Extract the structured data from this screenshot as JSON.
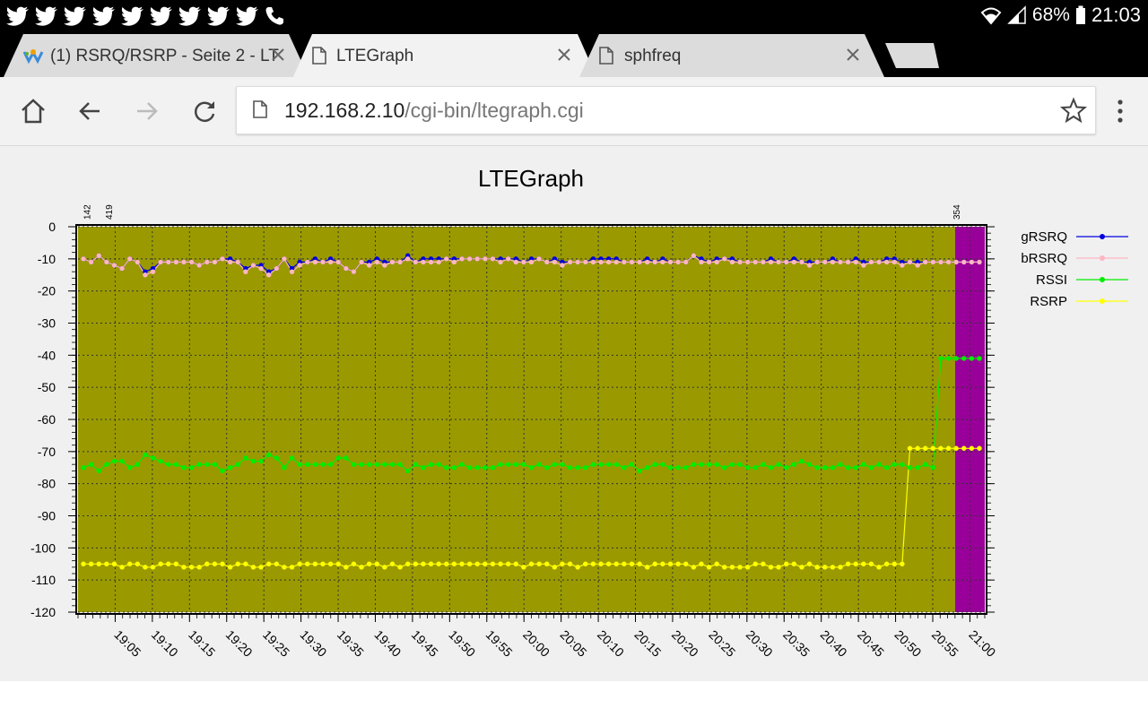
{
  "status_bar": {
    "battery": "68%",
    "time": "21:03",
    "notification_icons": [
      "twitter-icon",
      "twitter-icon",
      "twitter-icon",
      "twitter-icon",
      "twitter-icon",
      "twitter-icon",
      "twitter-icon",
      "twitter-icon",
      "twitter-icon",
      "phone-icon"
    ]
  },
  "tabs": [
    {
      "title": "(1) RSRQ/RSRP - Seite 2 - LT",
      "favicon": "forum-logo-icon",
      "active": false
    },
    {
      "title": "LTEGraph",
      "favicon": "page-icon",
      "active": true
    },
    {
      "title": "sphfreq",
      "favicon": "page-icon",
      "active": false
    }
  ],
  "address_bar": {
    "host": "192.168.2.10",
    "path": "/cgi-bin/ltegraph.cgi"
  },
  "chart_data": {
    "type": "line",
    "title": "LTEGraph",
    "ylim": [
      -120,
      0
    ],
    "yticks": [
      0,
      -10,
      -20,
      -30,
      -40,
      -50,
      -60,
      -70,
      -80,
      -90,
      -100,
      -110,
      -120
    ],
    "xticks": [
      "19:05",
      "19:10",
      "19:15",
      "19:20",
      "19:25",
      "19:30",
      "19:35",
      "19:40",
      "19:45",
      "19:50",
      "19:55",
      "20:00",
      "20:05",
      "20:10",
      "20:15",
      "20:20",
      "20:25",
      "20:30",
      "20:35",
      "20:40",
      "20:45",
      "20:50",
      "20:55",
      "21:00"
    ],
    "x_start": "19:00",
    "x_end": "21:02",
    "grid": true,
    "legend_position": "right",
    "top_annotations": [
      {
        "label": "142",
        "time": "19:01"
      },
      {
        "label": "419",
        "time": "19:04"
      },
      {
        "label": "354",
        "time": "20:58"
      }
    ],
    "regions": [
      {
        "from": "19:00",
        "to": "20:58",
        "color": "#9a9a00"
      },
      {
        "from": "20:58",
        "to": "21:02",
        "color": "#990099"
      }
    ],
    "series": [
      {
        "name": "gRSRQ",
        "color": "#0000dd",
        "values": [
          -10,
          -11,
          -9,
          -11,
          -12,
          -13,
          -10,
          -11,
          -14,
          -13,
          -11,
          -11,
          -11,
          -11,
          -11,
          -12,
          -11,
          -11,
          -10,
          -10,
          -11,
          -13,
          -12,
          -12,
          -14,
          -13,
          -10,
          -13,
          -11,
          -11,
          -10,
          -11,
          -10,
          -11,
          -13,
          -14,
          -11,
          -11,
          -10,
          -11,
          -11,
          -11,
          -9,
          -11,
          -10,
          -10,
          -10,
          -10,
          -10,
          -10,
          -10,
          -10,
          -10,
          -10,
          -10,
          -10,
          -10,
          -11,
          -10,
          -10,
          -11,
          -10,
          -11,
          -11,
          -11,
          -11,
          -10,
          -10,
          -10,
          -10,
          -11,
          -11,
          -11,
          -10,
          -11,
          -10,
          -11,
          -11,
          -11,
          -9,
          -10,
          -11,
          -10,
          -10,
          -10,
          -11,
          -11,
          -11,
          -11,
          -10,
          -11,
          -11,
          -10,
          -11,
          -11,
          -11,
          -11,
          -10,
          -11,
          -11,
          -10,
          -11,
          -11,
          -11,
          -10,
          -10,
          -11,
          -11,
          -11,
          -11,
          -11,
          -11,
          -11,
          -11,
          -11,
          -11,
          -11
        ]
      },
      {
        "name": "bRSRQ",
        "color": "#ffb6c1",
        "values": [
          -10,
          -11,
          -9,
          -11,
          -12,
          -13,
          -10,
          -11,
          -15,
          -14,
          -11,
          -11,
          -11,
          -11,
          -11,
          -12,
          -11,
          -11,
          -10,
          -11,
          -11,
          -14,
          -12,
          -13,
          -15,
          -13,
          -10,
          -14,
          -12,
          -11,
          -11,
          -11,
          -11,
          -11,
          -13,
          -14,
          -11,
          -12,
          -11,
          -12,
          -11,
          -11,
          -10,
          -11,
          -11,
          -11,
          -11,
          -10,
          -11,
          -10,
          -10,
          -10,
          -10,
          -10,
          -11,
          -10,
          -11,
          -11,
          -11,
          -10,
          -11,
          -11,
          -12,
          -11,
          -11,
          -11,
          -11,
          -11,
          -11,
          -11,
          -11,
          -11,
          -11,
          -11,
          -11,
          -11,
          -11,
          -11,
          -11,
          -9,
          -11,
          -11,
          -11,
          -10,
          -11,
          -11,
          -11,
          -11,
          -11,
          -11,
          -11,
          -11,
          -11,
          -11,
          -12,
          -11,
          -11,
          -11,
          -11,
          -11,
          -11,
          -12,
          -11,
          -11,
          -11,
          -11,
          -12,
          -11,
          -12,
          -11,
          -11,
          -11,
          -11,
          -11,
          -11,
          -11,
          -11
        ]
      },
      {
        "name": "RSSI",
        "color": "#00ee00",
        "values": [
          -75,
          -74,
          -76,
          -74,
          -73,
          -73,
          -75,
          -74,
          -71,
          -72,
          -73,
          -74,
          -74,
          -75,
          -75,
          -74,
          -74,
          -74,
          -76,
          -75,
          -74,
          -72,
          -73,
          -73,
          -71,
          -72,
          -75,
          -72,
          -74,
          -74,
          -74,
          -74,
          -74,
          -72,
          -72,
          -74,
          -74,
          -74,
          -74,
          -74,
          -74,
          -74,
          -76,
          -74,
          -75,
          -74,
          -74,
          -75,
          -75,
          -74,
          -75,
          -75,
          -75,
          -75,
          -74,
          -74,
          -74,
          -74,
          -75,
          -74,
          -75,
          -74,
          -74,
          -75,
          -75,
          -75,
          -74,
          -74,
          -74,
          -74,
          -75,
          -74,
          -76,
          -75,
          -74,
          -74,
          -75,
          -75,
          -75,
          -74,
          -74,
          -74,
          -74,
          -75,
          -74,
          -74,
          -75,
          -75,
          -74,
          -75,
          -74,
          -75,
          -74,
          -73,
          -74,
          -75,
          -75,
          -75,
          -74,
          -75,
          -75,
          -74,
          -75,
          -74,
          -75,
          -74,
          -74,
          -75,
          -75,
          -74,
          -75,
          -41,
          -41,
          -41,
          -41,
          -41,
          -41
        ]
      },
      {
        "name": "RSRP",
        "color": "#ffff00",
        "values": [
          -105,
          -105,
          -105,
          -105,
          -105,
          -106,
          -105,
          -105,
          -106,
          -106,
          -105,
          -105,
          -105,
          -106,
          -106,
          -106,
          -105,
          -105,
          -105,
          -106,
          -105,
          -105,
          -106,
          -106,
          -105,
          -105,
          -106,
          -106,
          -105,
          -105,
          -105,
          -105,
          -105,
          -105,
          -106,
          -105,
          -106,
          -105,
          -105,
          -106,
          -105,
          -106,
          -105,
          -105,
          -105,
          -105,
          -105,
          -105,
          -105,
          -105,
          -105,
          -105,
          -105,
          -105,
          -105,
          -105,
          -105,
          -106,
          -105,
          -105,
          -105,
          -106,
          -105,
          -105,
          -106,
          -105,
          -105,
          -105,
          -105,
          -105,
          -105,
          -105,
          -105,
          -106,
          -105,
          -105,
          -105,
          -105,
          -105,
          -106,
          -105,
          -106,
          -105,
          -106,
          -106,
          -106,
          -106,
          -105,
          -105,
          -106,
          -106,
          -105,
          -105,
          -106,
          -105,
          -106,
          -106,
          -106,
          -106,
          -105,
          -105,
          -105,
          -105,
          -106,
          -105,
          -105,
          -105,
          -69,
          -69,
          -69,
          -69,
          -69,
          -69,
          -69,
          -69,
          -69,
          -69
        ]
      }
    ]
  }
}
